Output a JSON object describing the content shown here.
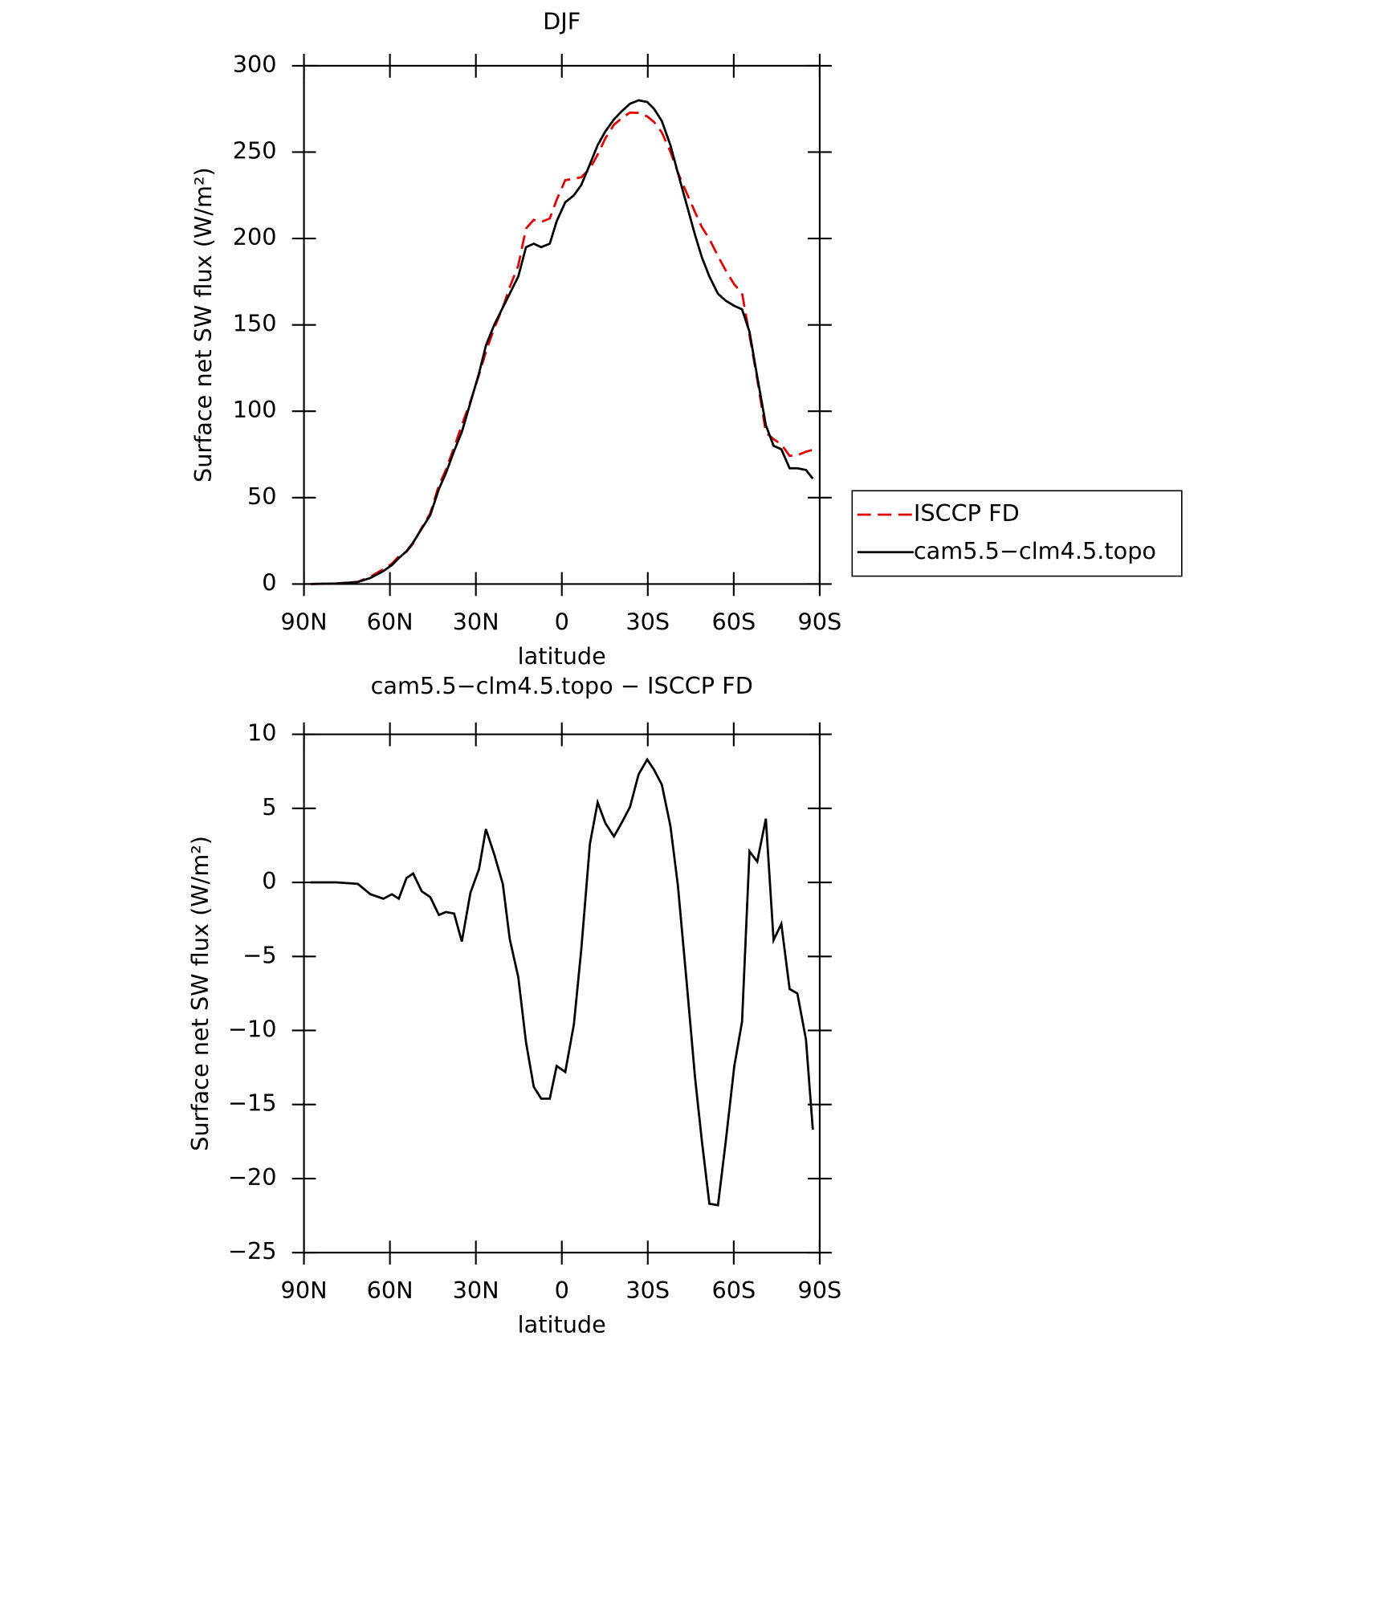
{
  "chart_data": [
    {
      "type": "line",
      "title": "DJF",
      "xlabel": "latitude",
      "ylabel": "Surface net SW flux (W/m²)",
      "x": [
        87.6,
        78.7,
        71.2,
        66.8,
        62.3,
        59.3,
        56.9,
        54.2,
        51.9,
        48.9,
        45.9,
        42.9,
        40.5,
        37.6,
        34.9,
        31.9,
        28.9,
        26.5,
        23.6,
        20.6,
        18.2,
        15.2,
        12.5,
        9.8,
        7.2,
        4.2,
        1.8,
        -1.2,
        -4.2,
        -6.8,
        -9.8,
        -12.5,
        -15.2,
        -18.2,
        -21.1,
        -23.8,
        -26.8,
        -29.8,
        -32.2,
        -34.9,
        -37.9,
        -40.5,
        -43.5,
        -46.5,
        -48.9,
        -51.5,
        -54.5,
        -57.2,
        -60.2,
        -62.9,
        -65.5,
        -68.2,
        -71.2,
        -73.9,
        -76.6,
        -79.5,
        -82.2,
        -85.2,
        -87.6
      ],
      "series": [
        {
          "name": "ISCCP FD",
          "color": "#e00000",
          "dashed": true,
          "values": [
            0,
            0.3,
            1.3,
            4.3,
            8.6,
            11.8,
            16.1,
            18.7,
            23.4,
            32.6,
            41,
            57.2,
            66,
            79.1,
            92,
            105.7,
            121.1,
            134.4,
            148.1,
            160.1,
            171.8,
            184.4,
            205.8,
            210.8,
            209.6,
            211.6,
            222.4,
            233.8,
            234.6,
            235.5,
            240.4,
            248.6,
            258,
            265.9,
            269.9,
            272.9,
            272.7,
            270.7,
            267.4,
            261.4,
            250.2,
            238.2,
            226.6,
            215.2,
            206.5,
            199.7,
            189.8,
            181.5,
            173.4,
            168.4,
            143.9,
            118.6,
            87.7,
            83.9,
            80.8,
            74.2,
            74.5,
            76.6,
            77.7
          ]
        },
        {
          "name": "cam5.5−clm4.5.topo",
          "color": "#000000",
          "dashed": false,
          "values": [
            0,
            0.3,
            1.2,
            3.5,
            7.5,
            11,
            15,
            19,
            24,
            32,
            40,
            55,
            64,
            77,
            88,
            105,
            122,
            138,
            150,
            160,
            168,
            178,
            195,
            197,
            195,
            197,
            210,
            221,
            225,
            231,
            243,
            254,
            262,
            269,
            274,
            278,
            280,
            279,
            275,
            268,
            254,
            238,
            220,
            202,
            189,
            178,
            168,
            164,
            161,
            159,
            146,
            120,
            92,
            80,
            78,
            67,
            67,
            66,
            61
          ]
        }
      ],
      "xlim": [
        90,
        -90
      ],
      "xticks": [
        {
          "value": 90,
          "label": "90N"
        },
        {
          "value": 60,
          "label": "60N"
        },
        {
          "value": 30,
          "label": "30N"
        },
        0,
        {
          "value": -30,
          "label": "30S"
        },
        {
          "value": -60,
          "label": "60S"
        },
        {
          "value": -90,
          "label": "90S"
        }
      ],
      "ylim": [
        0,
        300
      ],
      "yticks": [
        0,
        50,
        100,
        150,
        200,
        250,
        300
      ],
      "legend": "right"
    },
    {
      "type": "line",
      "title": "cam5.5−clm4.5.topo − ISCCP FD",
      "xlabel": "latitude",
      "ylabel": "Surface net SW flux (W/m²)",
      "x": [
        87.6,
        78.7,
        71.2,
        66.8,
        62.3,
        59.3,
        56.9,
        54.2,
        51.9,
        48.9,
        45.9,
        42.9,
        40.5,
        37.6,
        34.9,
        31.9,
        28.9,
        26.5,
        23.6,
        20.6,
        18.2,
        15.2,
        12.5,
        9.8,
        7.2,
        4.2,
        1.8,
        -1.2,
        -4.2,
        -6.8,
        -9.8,
        -12.5,
        -15.2,
        -18.2,
        -21.1,
        -23.8,
        -26.8,
        -29.8,
        -32.2,
        -34.9,
        -37.9,
        -40.5,
        -43.5,
        -46.5,
        -48.9,
        -51.5,
        -54.5,
        -57.2,
        -60.2,
        -62.9,
        -65.5,
        -68.2,
        -71.2,
        -73.9,
        -76.6,
        -79.5,
        -82.2,
        -85.2,
        -87.6
      ],
      "values": [
        0,
        0,
        -0.1,
        -0.8,
        -1.1,
        -0.8,
        -1.1,
        0.3,
        0.6,
        -0.6,
        -1,
        -2.2,
        -2,
        -2.1,
        -4,
        -0.7,
        0.9,
        3.6,
        1.9,
        -0.1,
        -3.8,
        -6.4,
        -10.8,
        -13.8,
        -14.6,
        -14.6,
        -12.4,
        -12.8,
        -9.6,
        -4.5,
        2.6,
        5.4,
        4,
        3.1,
        4.1,
        5.1,
        7.3,
        8.3,
        7.6,
        6.6,
        3.8,
        -0.2,
        -6.6,
        -13.2,
        -17.5,
        -21.7,
        -21.8,
        -17.5,
        -12.4,
        -9.4,
        2.1,
        1.4,
        4.3,
        -3.9,
        -2.8,
        -7.2,
        -7.5,
        -10.6,
        -16.7
      ],
      "color": "#000000",
      "xlim": [
        90,
        -90
      ],
      "xticks": [
        {
          "value": 90,
          "label": "90N"
        },
        {
          "value": 60,
          "label": "60N"
        },
        {
          "value": 30,
          "label": "30N"
        },
        0,
        {
          "value": -30,
          "label": "30S"
        },
        {
          "value": -60,
          "label": "60S"
        },
        {
          "value": -90,
          "label": "90S"
        }
      ],
      "ylim": [
        -25,
        10
      ],
      "yticks": [
        {
          "value": -25,
          "label": "−25"
        },
        {
          "value": -20,
          "label": "−20"
        },
        {
          "value": -15,
          "label": "−15"
        },
        {
          "value": -10,
          "label": "−10"
        },
        {
          "value": -5,
          "label": "−5"
        },
        0,
        5,
        10
      ]
    }
  ]
}
